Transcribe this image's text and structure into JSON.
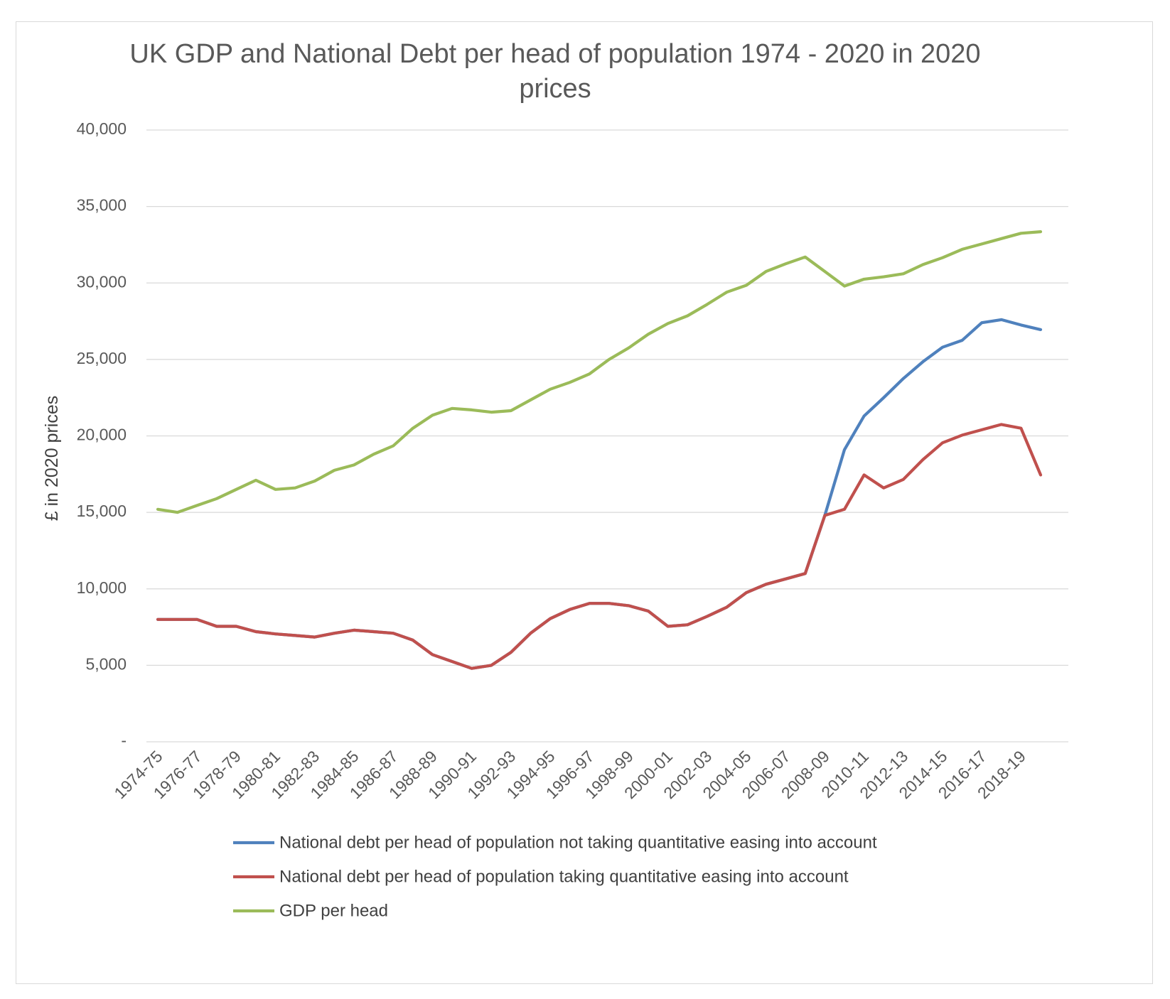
{
  "chart_data": {
    "type": "line",
    "title_line1": "UK GDP and National Debt per head of population 1974 - 2020 in 2020",
    "title_line2": "prices",
    "ylabel": "£ in 2020 prices",
    "xlabel": "",
    "ylim": [
      0,
      40000
    ],
    "yticks": [
      0,
      5000,
      10000,
      15000,
      20000,
      25000,
      30000,
      35000,
      40000
    ],
    "ytick_labels": [
      "-",
      "5,000",
      "10,000",
      "15,000",
      "20,000",
      "25,000",
      "30,000",
      "35,000",
      "40,000"
    ],
    "grid": true,
    "legend_position": "bottom",
    "categories": [
      "1974-75",
      "1975-76",
      "1976-77",
      "1977-78",
      "1978-79",
      "1979-80",
      "1980-81",
      "1981-82",
      "1982-83",
      "1983-84",
      "1984-85",
      "1985-86",
      "1986-87",
      "1987-88",
      "1988-89",
      "1989-90",
      "1990-91",
      "1991-92",
      "1992-93",
      "1993-94",
      "1994-95",
      "1995-96",
      "1996-97",
      "1997-98",
      "1998-99",
      "1999-00",
      "2000-01",
      "2001-02",
      "2002-03",
      "2003-04",
      "2004-05",
      "2005-06",
      "2006-07",
      "2007-08",
      "2008-09",
      "2009-10",
      "2010-11",
      "2011-12",
      "2012-13",
      "2013-14",
      "2014-15",
      "2015-16",
      "2016-17",
      "2017-18",
      "2018-19",
      "2019-20"
    ],
    "visible_tick_labels": [
      "1974-75",
      "1976-77",
      "1978-79",
      "1980-81",
      "1982-83",
      "1984-85",
      "1986-87",
      "1988-89",
      "1990-91",
      "1992-93",
      "1994-95",
      "1996-97",
      "1998-99",
      "2000-01",
      "2002-03",
      "2004-05",
      "2006-07",
      "2008-09",
      "2010-11",
      "2012-13",
      "2014-15",
      "2016-17",
      "2018-19"
    ],
    "series": [
      {
        "name": "National debt per head of population not taking quantitative easing into account",
        "color": "#4f81bd",
        "values": [
          8000,
          8000,
          8000,
          7550,
          7550,
          7200,
          7050,
          6950,
          6850,
          7100,
          7300,
          7200,
          7100,
          6650,
          5700,
          5250,
          4800,
          5000,
          5850,
          7100,
          8050,
          8650,
          9050,
          9050,
          8900,
          8550,
          7550,
          7650,
          8200,
          8800,
          9750,
          10300,
          10650,
          11000,
          14800,
          19100,
          21300,
          22500,
          23750,
          24850,
          25800,
          26250,
          27400,
          27600,
          27250,
          26950
        ]
      },
      {
        "name": "National debt per head of population taking quantitative easing into account",
        "color": "#c0504d",
        "values": [
          8000,
          8000,
          8000,
          7550,
          7550,
          7200,
          7050,
          6950,
          6850,
          7100,
          7300,
          7200,
          7100,
          6650,
          5700,
          5250,
          4800,
          5000,
          5850,
          7100,
          8050,
          8650,
          9050,
          9050,
          8900,
          8550,
          7550,
          7650,
          8200,
          8800,
          9750,
          10300,
          10650,
          11000,
          14800,
          15200,
          17450,
          16600,
          17150,
          18450,
          19550,
          20050,
          20400,
          20750,
          20500,
          17450
        ]
      },
      {
        "name": "GDP per head",
        "color": "#9bbb59",
        "values": [
          15200,
          15000,
          15450,
          15900,
          16500,
          17100,
          16500,
          16600,
          17050,
          17750,
          18100,
          18800,
          19350,
          20500,
          21350,
          21800,
          21700,
          21550,
          21650,
          22350,
          23050,
          23500,
          24050,
          25000,
          25750,
          26650,
          27350,
          27850,
          28600,
          29400,
          29850,
          30750,
          31250,
          31700,
          30750,
          29800,
          30250,
          30400,
          30600,
          31200,
          31650,
          32200,
          32550,
          32900,
          33250,
          33350
        ]
      }
    ]
  }
}
